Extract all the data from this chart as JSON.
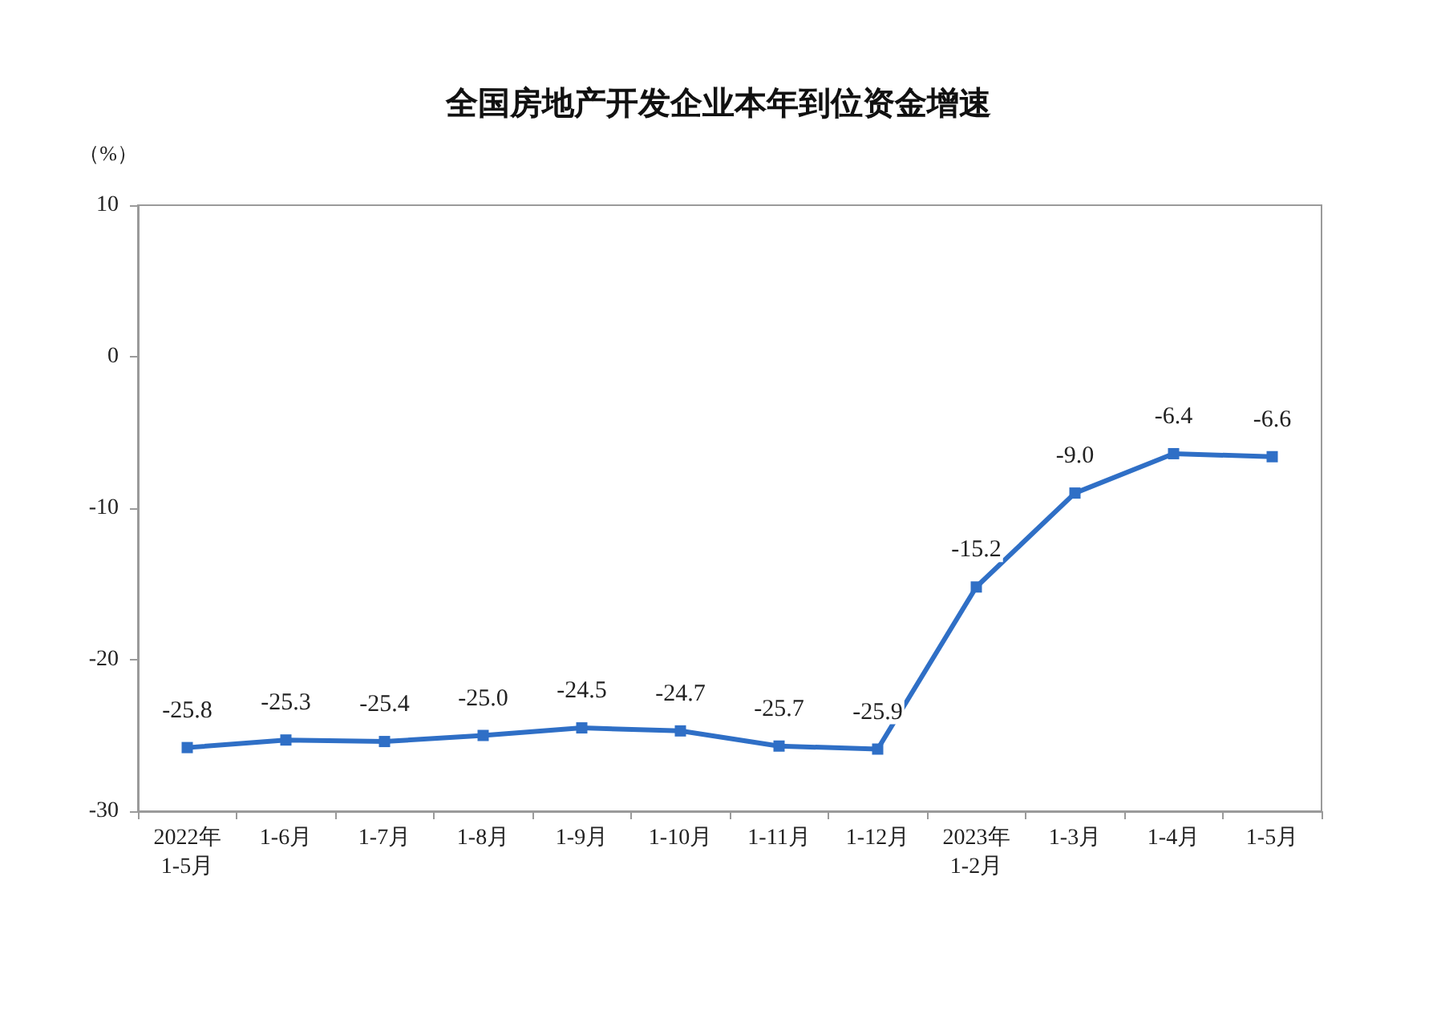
{
  "chart_data": {
    "type": "line",
    "title": "全国房地产开发企业本年到位资金增速",
    "ylabel": "（%）",
    "categories": [
      "2022年\n1-5月",
      "1-6月",
      "1-7月",
      "1-8月",
      "1-9月",
      "1-10月",
      "1-11月",
      "1-12月",
      "2023年\n1-2月",
      "1-3月",
      "1-4月",
      "1-5月"
    ],
    "values": [
      -25.8,
      -25.3,
      -25.4,
      -25.0,
      -24.5,
      -24.7,
      -25.7,
      -25.9,
      -15.2,
      -9.0,
      -6.4,
      -6.6
    ],
    "value_labels": [
      "-25.8",
      "-25.3",
      "-25.4",
      "-25.0",
      "-24.5",
      "-24.7",
      "-25.7",
      "-25.9",
      "-15.2",
      "-9.0",
      "-6.4",
      "-6.6"
    ],
    "color": "#2f6fc6",
    "ylim": [
      -30,
      10
    ],
    "yticks": [
      -30,
      -20,
      -10,
      0,
      10
    ],
    "grid": false,
    "marker": "square",
    "line_style": "solid"
  }
}
